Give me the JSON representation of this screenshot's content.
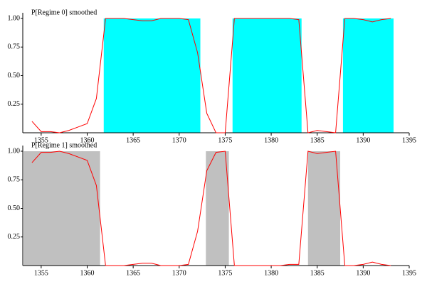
{
  "chart_data": [
    {
      "type": "line",
      "title": "P[Regime 0] smoothed",
      "x": [
        1354,
        1355,
        1356,
        1357,
        1358,
        1359,
        1360,
        1361,
        1362,
        1363,
        1364,
        1365,
        1366,
        1367,
        1368,
        1369,
        1370,
        1371,
        1372,
        1373,
        1374,
        1375,
        1376,
        1377,
        1378,
        1379,
        1380,
        1381,
        1382,
        1383,
        1384,
        1385,
        1386,
        1387,
        1388,
        1389,
        1390,
        1391,
        1392,
        1393
      ],
      "series": [
        {
          "color": "#ff0000",
          "values": [
            0.1,
            0.01,
            0.01,
            0.0,
            0.02,
            0.05,
            0.08,
            0.3,
            1.0,
            1.0,
            1.0,
            0.99,
            0.98,
            0.98,
            1.0,
            1.0,
            1.0,
            0.99,
            0.7,
            0.17,
            0.0,
            0.0,
            1.0,
            1.0,
            1.0,
            1.0,
            1.0,
            1.0,
            1.0,
            0.99,
            0.0,
            0.02,
            0.01,
            0.0,
            1.0,
            1.0,
            0.99,
            0.97,
            0.99,
            1.0
          ]
        }
      ],
      "shade": {
        "color": "#00ffff",
        "ranges": [
          [
            1361.8,
            1372.3
          ],
          [
            1375.8,
            1383.3
          ],
          [
            1387.8,
            1393.3
          ]
        ]
      },
      "xlim": [
        1353,
        1395
      ],
      "xticks": [
        1355,
        1360,
        1365,
        1370,
        1375,
        1380,
        1385,
        1390,
        1395
      ],
      "ylim": [
        0,
        1
      ],
      "yticks": [
        {
          "value": 0.25,
          "label": "0.25"
        },
        {
          "value": 0.5,
          "label": "0.50"
        },
        {
          "value": 0.75,
          "label": "0.75"
        },
        {
          "value": 1,
          "label": "1.00"
        }
      ]
    },
    {
      "type": "line",
      "title": "P[Regime 1] smoothed",
      "x": [
        1354,
        1355,
        1356,
        1357,
        1358,
        1359,
        1360,
        1361,
        1362,
        1363,
        1364,
        1365,
        1366,
        1367,
        1368,
        1369,
        1370,
        1371,
        1372,
        1373,
        1374,
        1375,
        1376,
        1377,
        1378,
        1379,
        1380,
        1381,
        1382,
        1383,
        1384,
        1385,
        1386,
        1387,
        1388,
        1389,
        1390,
        1391,
        1392,
        1393
      ],
      "series": [
        {
          "color": "#ff0000",
          "values": [
            0.9,
            0.99,
            0.99,
            1.0,
            0.98,
            0.95,
            0.92,
            0.7,
            0.0,
            0.0,
            0.0,
            0.01,
            0.02,
            0.02,
            0.0,
            0.0,
            0.0,
            0.01,
            0.3,
            0.83,
            0.99,
            1.0,
            0.0,
            0.0,
            0.0,
            0.0,
            0.0,
            0.0,
            0.01,
            0.01,
            1.0,
            0.98,
            0.99,
            1.0,
            0.0,
            0.0,
            0.01,
            0.03,
            0.01,
            0.0
          ]
        }
      ],
      "shade": {
        "color": "#c0c0c0",
        "ranges": [
          [
            1353.1,
            1361.4
          ],
          [
            1372.9,
            1375.4
          ],
          [
            1384.0,
            1387.5
          ]
        ]
      },
      "xlim": [
        1353,
        1395
      ],
      "xticks": [
        1355,
        1360,
        1365,
        1370,
        1375,
        1380,
        1385,
        1390,
        1395
      ],
      "ylim": [
        0,
        1
      ],
      "yticks": [
        {
          "value": 0.25,
          "label": "0.25"
        },
        {
          "value": 0.5,
          "label": "0.50"
        },
        {
          "value": 0.75,
          "label": "0.75"
        },
        {
          "value": 1,
          "label": "1.00"
        }
      ]
    }
  ]
}
